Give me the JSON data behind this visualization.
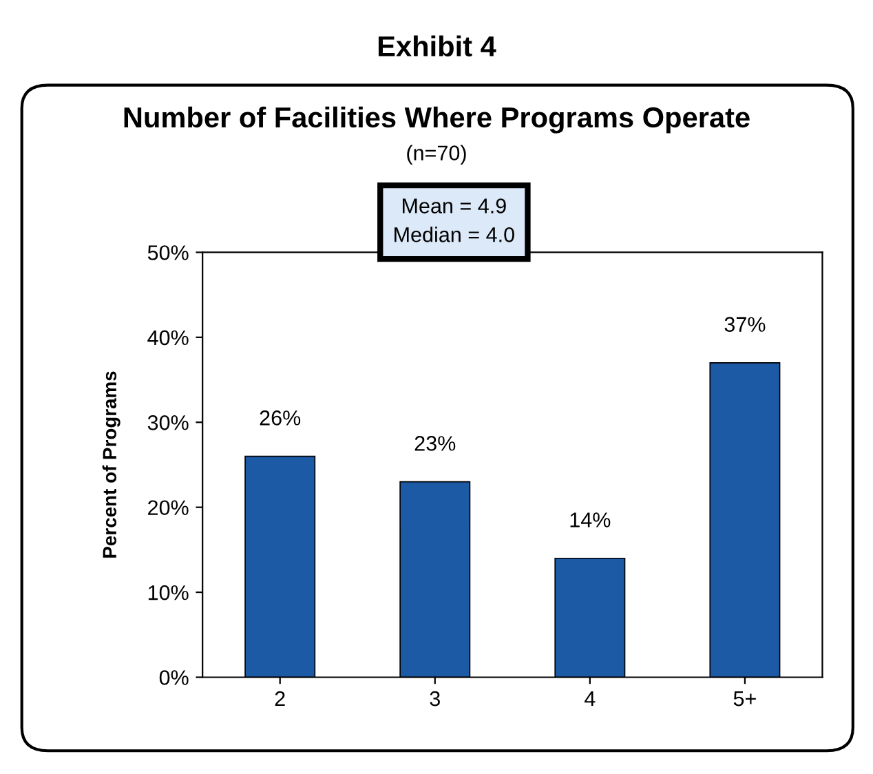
{
  "chart_data": {
    "type": "bar",
    "title": "Number of Facilities Where Programs Operate",
    "subtitle": "(n=70)",
    "ylabel": "Percent of Programs",
    "annotations": [
      "Exhibit 4",
      "Mean = 4.9\nMedian = 4.0"
    ],
    "categories": [
      "2",
      "3",
      "4",
      "5+"
    ],
    "values": [
      26,
      23,
      14,
      37
    ],
    "value_labels": [
      "26%",
      "23%",
      "14%",
      "37%"
    ],
    "color": "#1c5aa6",
    "ylim": [
      0,
      50
    ],
    "yticks": [
      {
        "value": 0,
        "label": "0%"
      },
      {
        "value": 10,
        "label": "10%"
      },
      {
        "value": 20,
        "label": "20%"
      },
      {
        "value": 30,
        "label": "30%"
      },
      {
        "value": 40,
        "label": "40%"
      },
      {
        "value": 50,
        "label": "50%"
      }
    ],
    "grid": false
  }
}
